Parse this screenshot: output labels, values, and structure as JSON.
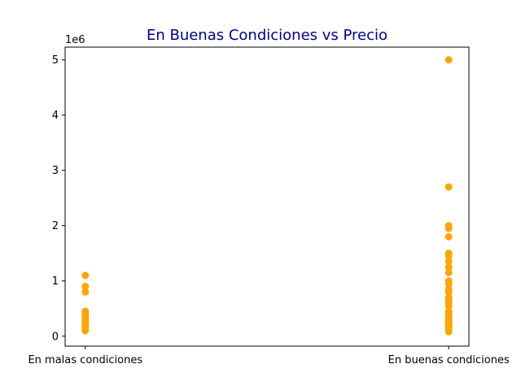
{
  "chart_data": {
    "type": "scatter",
    "title": "En Buenas Condiciones  vs Precio",
    "xlabel": "",
    "ylabel": "",
    "categories": [
      "En malas condiciones",
      "En buenas condiciones"
    ],
    "y_offset_label": "1e6",
    "y_scale": 1000000,
    "ylim": [
      -180000,
      5230000
    ],
    "y_ticks": [
      0,
      1000000,
      2000000,
      3000000,
      4000000,
      5000000
    ],
    "y_tick_labels": [
      "0",
      "1",
      "2",
      "3",
      "4",
      "5"
    ],
    "grid": false,
    "legend": "none",
    "series": [
      {
        "points": [
          {
            "x": "En malas condiciones",
            "y": 1100000
          },
          {
            "x": "En malas condiciones",
            "y": 900000
          },
          {
            "x": "En malas condiciones",
            "y": 800000
          },
          {
            "x": "En malas condiciones",
            "y": 450000
          },
          {
            "x": "En malas condiciones",
            "y": 400000
          },
          {
            "x": "En malas condiciones",
            "y": 350000
          },
          {
            "x": "En malas condiciones",
            "y": 320000
          },
          {
            "x": "En malas condiciones",
            "y": 280000
          },
          {
            "x": "En malas condiciones",
            "y": 250000
          },
          {
            "x": "En malas condiciones",
            "y": 220000
          },
          {
            "x": "En malas condiciones",
            "y": 200000
          },
          {
            "x": "En malas condiciones",
            "y": 180000
          },
          {
            "x": "En malas condiciones",
            "y": 150000
          },
          {
            "x": "En malas condiciones",
            "y": 100000
          },
          {
            "x": "En buenas condiciones",
            "y": 5000000
          },
          {
            "x": "En buenas condiciones",
            "y": 2700000
          },
          {
            "x": "En buenas condiciones",
            "y": 2000000
          },
          {
            "x": "En buenas condiciones",
            "y": 1950000
          },
          {
            "x": "En buenas condiciones",
            "y": 1800000
          },
          {
            "x": "En buenas condiciones",
            "y": 1500000
          },
          {
            "x": "En buenas condiciones",
            "y": 1450000
          },
          {
            "x": "En buenas condiciones",
            "y": 1350000
          },
          {
            "x": "En buenas condiciones",
            "y": 1250000
          },
          {
            "x": "En buenas condiciones",
            "y": 1150000
          },
          {
            "x": "En buenas condiciones",
            "y": 1000000
          },
          {
            "x": "En buenas condiciones",
            "y": 950000
          },
          {
            "x": "En buenas condiciones",
            "y": 850000
          },
          {
            "x": "En buenas condiciones",
            "y": 800000
          },
          {
            "x": "En buenas condiciones",
            "y": 700000
          },
          {
            "x": "En buenas condiciones",
            "y": 650000
          },
          {
            "x": "En buenas condiciones",
            "y": 600000
          },
          {
            "x": "En buenas condiciones",
            "y": 550000
          },
          {
            "x": "En buenas condiciones",
            "y": 450000
          },
          {
            "x": "En buenas condiciones",
            "y": 420000
          },
          {
            "x": "En buenas condiciones",
            "y": 380000
          },
          {
            "x": "En buenas condiciones",
            "y": 350000
          },
          {
            "x": "En buenas condiciones",
            "y": 320000
          },
          {
            "x": "En buenas condiciones",
            "y": 300000
          },
          {
            "x": "En buenas condiciones",
            "y": 280000
          },
          {
            "x": "En buenas condiciones",
            "y": 250000
          },
          {
            "x": "En buenas condiciones",
            "y": 230000
          },
          {
            "x": "En buenas condiciones",
            "y": 200000
          },
          {
            "x": "En buenas condiciones",
            "y": 180000
          },
          {
            "x": "En buenas condiciones",
            "y": 150000
          },
          {
            "x": "En buenas condiciones",
            "y": 120000
          },
          {
            "x": "En buenas condiciones",
            "y": 80000
          }
        ]
      }
    ]
  },
  "colors": {
    "marker": "#ffa500",
    "title": "#00008b",
    "axis": "#000000"
  }
}
